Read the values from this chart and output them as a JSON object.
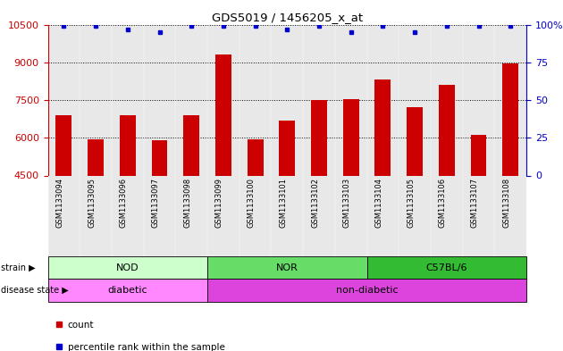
{
  "title": "GDS5019 / 1456205_x_at",
  "samples": [
    "GSM1133094",
    "GSM1133095",
    "GSM1133096",
    "GSM1133097",
    "GSM1133098",
    "GSM1133099",
    "GSM1133100",
    "GSM1133101",
    "GSM1133102",
    "GSM1133103",
    "GSM1133104",
    "GSM1133105",
    "GSM1133106",
    "GSM1133107",
    "GSM1133108"
  ],
  "counts": [
    6900,
    5950,
    6900,
    5900,
    6900,
    9300,
    5950,
    6700,
    7500,
    7550,
    8300,
    7200,
    8100,
    6100,
    8950
  ],
  "percentile_ranks": [
    99,
    99,
    97,
    95,
    99,
    99,
    99,
    97,
    99,
    95,
    99,
    95,
    99,
    99,
    99
  ],
  "ylim_left": [
    4500,
    10500
  ],
  "ylim_right": [
    0,
    100
  ],
  "yticks_left": [
    4500,
    6000,
    7500,
    9000,
    10500
  ],
  "yticks_right": [
    0,
    25,
    50,
    75,
    100
  ],
  "bar_color": "#cc0000",
  "dot_color": "#0000cc",
  "strain_groups": [
    {
      "label": "NOD",
      "start": 0,
      "end": 5,
      "color": "#ccffcc"
    },
    {
      "label": "NOR",
      "start": 5,
      "end": 10,
      "color": "#66dd66"
    },
    {
      "label": "C57BL/6",
      "start": 10,
      "end": 15,
      "color": "#33bb33"
    }
  ],
  "disease_groups": [
    {
      "label": "diabetic",
      "start": 0,
      "end": 5,
      "color": "#ff88ff"
    },
    {
      "label": "non-diabetic",
      "start": 5,
      "end": 15,
      "color": "#dd44dd"
    }
  ],
  "strain_label": "strain",
  "disease_label": "disease state",
  "legend_items": [
    {
      "color": "#cc0000",
      "label": "count"
    },
    {
      "color": "#0000cc",
      "label": "percentile rank within the sample"
    }
  ],
  "left_axis_color": "#cc0000",
  "right_axis_color": "#0000cc",
  "bg_color": "#e8e8e8"
}
